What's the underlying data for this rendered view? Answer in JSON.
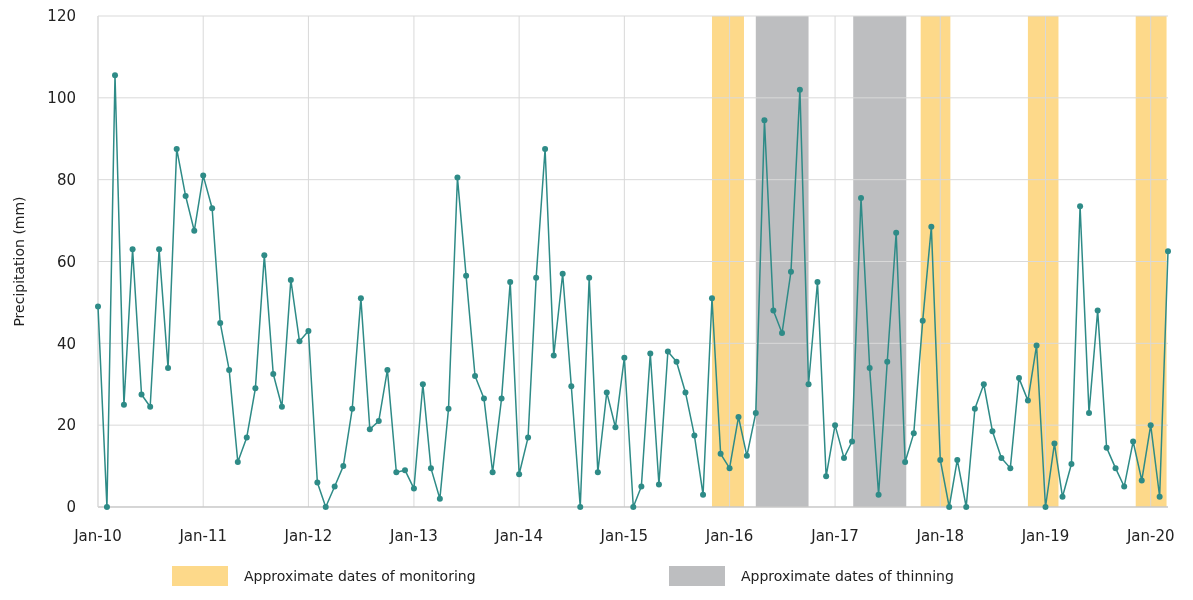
{
  "chart_data": {
    "type": "line",
    "ylabel": "Precipitation (mm)",
    "x": [
      "2010-01",
      "2010-02",
      "2010-03",
      "2010-04",
      "2010-05",
      "2010-06",
      "2010-07",
      "2010-08",
      "2010-09",
      "2010-10",
      "2010-11",
      "2010-12",
      "2011-01",
      "2011-02",
      "2011-03",
      "2011-04",
      "2011-05",
      "2011-06",
      "2011-07",
      "2011-08",
      "2011-09",
      "2011-10",
      "2011-11",
      "2011-12",
      "2012-01",
      "2012-02",
      "2012-03",
      "2012-04",
      "2012-05",
      "2012-06",
      "2012-07",
      "2012-08",
      "2012-09",
      "2012-10",
      "2012-11",
      "2012-12",
      "2013-01",
      "2013-02",
      "2013-03",
      "2013-04",
      "2013-05",
      "2013-06",
      "2013-07",
      "2013-08",
      "2013-09",
      "2013-10",
      "2013-11",
      "2013-12",
      "2014-01",
      "2014-02",
      "2014-03",
      "2014-04",
      "2014-05",
      "2014-06",
      "2014-07",
      "2014-08",
      "2014-09",
      "2014-10",
      "2014-11",
      "2014-12",
      "2015-01",
      "2015-02",
      "2015-03",
      "2015-04",
      "2015-05",
      "2015-06",
      "2015-07",
      "2015-08",
      "2015-09",
      "2015-10",
      "2015-11",
      "2015-12",
      "2016-01",
      "2016-02",
      "2016-03",
      "2016-04",
      "2016-05",
      "2016-06",
      "2016-07",
      "2016-08",
      "2016-09",
      "2016-10",
      "2016-11",
      "2016-12",
      "2017-01",
      "2017-02",
      "2017-03",
      "2017-04",
      "2017-05",
      "2017-06",
      "2017-07",
      "2017-08",
      "2017-09",
      "2017-10",
      "2017-11",
      "2017-12",
      "2018-01",
      "2018-02",
      "2018-03",
      "2018-04",
      "2018-05",
      "2018-06",
      "2018-07",
      "2018-08",
      "2018-09",
      "2018-10",
      "2018-11",
      "2018-12",
      "2019-01",
      "2019-02",
      "2019-03",
      "2019-04",
      "2019-05",
      "2019-06",
      "2019-07",
      "2019-08",
      "2019-09",
      "2019-10",
      "2019-11",
      "2019-12",
      "2020-01",
      "2020-02",
      "2020-03"
    ],
    "series": [
      {
        "color": "#2e8b87",
        "values": [
          49,
          0,
          105.5,
          25,
          63,
          27.5,
          24.5,
          63,
          34,
          87.5,
          76,
          67.5,
          81,
          73,
          45,
          33.5,
          11,
          17,
          29,
          61.5,
          32.5,
          24.5,
          55.5,
          40.5,
          43,
          6,
          0,
          5,
          10,
          24,
          51,
          19,
          21,
          33.5,
          8.5,
          9,
          4.5,
          30,
          9.5,
          2,
          24,
          80.5,
          56.5,
          32,
          26.5,
          8.5,
          26.5,
          55,
          8,
          17,
          56,
          87.5,
          37,
          57,
          29.5,
          0,
          56,
          8.5,
          28,
          19.5,
          36.5,
          0,
          5,
          37.5,
          5.5,
          38,
          35.5,
          28,
          17.5,
          3,
          51,
          13,
          9.5,
          22,
          12.5,
          23,
          94.5,
          48,
          42.5,
          57.5,
          102,
          30,
          55,
          7.5,
          20,
          12,
          16,
          75.5,
          34,
          3,
          35.5,
          67,
          11,
          18,
          45.5,
          68.5,
          11.5,
          0,
          11.5,
          0,
          24,
          30,
          18.5,
          12,
          9.5,
          31.5,
          26,
          39.5,
          0,
          15.5,
          2.5,
          10.5,
          73.5,
          23,
          48,
          14.5,
          9.5,
          5,
          16,
          6.5,
          20,
          2.5,
          62.5
        ]
      }
    ],
    "xlim": [
      "2010-01",
      "2020-03"
    ],
    "xticks": [
      {
        "value": "2010-01",
        "label": "Jan-10"
      },
      {
        "value": "2011-01",
        "label": "Jan-11"
      },
      {
        "value": "2012-01",
        "label": "Jan-12"
      },
      {
        "value": "2013-01",
        "label": "Jan-13"
      },
      {
        "value": "2014-01",
        "label": "Jan-14"
      },
      {
        "value": "2015-01",
        "label": "Jan-15"
      },
      {
        "value": "2016-01",
        "label": "Jan-16"
      },
      {
        "value": "2017-01",
        "label": "Jan-17"
      },
      {
        "value": "2018-01",
        "label": "Jan-18"
      },
      {
        "value": "2019-01",
        "label": "Jan-19"
      },
      {
        "value": "2020-01",
        "label": "Jan-20"
      }
    ],
    "ylim": [
      0,
      120
    ],
    "yticks": [
      0,
      20,
      40,
      60,
      80,
      100,
      120
    ],
    "bands": [
      {
        "axis": "x",
        "from": "2015-11-01",
        "to": "2016-02-20",
        "label": "Approximate dates of monitoring",
        "color": "#fdd98a"
      },
      {
        "axis": "x",
        "from": "2016-04-01",
        "to": "2016-10-01",
        "label": "Approximate dates of thinning",
        "color": "#bdbec0"
      },
      {
        "axis": "x",
        "from": "2017-03-05",
        "to": "2017-09-05",
        "color": "#bdbec0"
      },
      {
        "axis": "x",
        "from": "2017-10-25",
        "to": "2018-02-05",
        "color": "#fdd98a"
      },
      {
        "axis": "x",
        "from": "2018-11-01",
        "to": "2019-02-15",
        "color": "#fdd98a"
      },
      {
        "axis": "x",
        "from": "2019-11-10",
        "to": "2020-02-25",
        "color": "#fdd98a"
      }
    ],
    "grid": true,
    "legend": "bottom",
    "marker": "circle",
    "line_style": "solid"
  }
}
